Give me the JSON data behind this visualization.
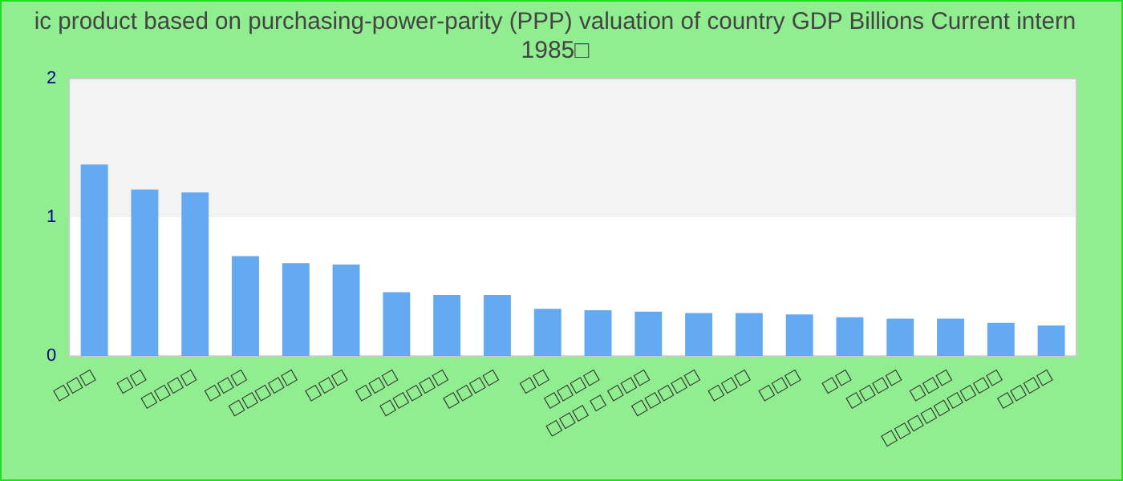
{
  "chart_data": {
    "type": "bar",
    "title": "ic product based on purchasing-power-parity (PPP) valuation of country GDP Billions Current intern\n1985□",
    "categories": [
      "□□□",
      "□□",
      "□□□□",
      "□□□",
      "□□□□□",
      "□□□",
      "□□□",
      "□□□□□",
      "□□□□",
      "□□",
      "□□□□",
      "□□□ □ □□□",
      "□□□□□",
      "□□□",
      "□□□",
      "□□",
      "□□□□",
      "□□□",
      "□□□□□□□□□",
      "□□□□"
    ],
    "values": [
      1.38,
      1.2,
      1.18,
      0.72,
      0.67,
      0.66,
      0.46,
      0.44,
      0.44,
      0.34,
      0.33,
      0.32,
      0.31,
      0.31,
      0.3,
      0.28,
      0.27,
      0.27,
      0.24,
      0.22
    ],
    "color": "#63aaf3",
    "ylim": [
      0,
      2
    ],
    "yticks": [
      0,
      1,
      2
    ],
    "bands": [
      {
        "axis": "y",
        "from": 0,
        "to": 1,
        "color": "#ffffff"
      },
      {
        "axis": "y",
        "from": 1,
        "to": 2,
        "color": "#f3f3f3"
      }
    ],
    "grid": false,
    "legend": false
  }
}
